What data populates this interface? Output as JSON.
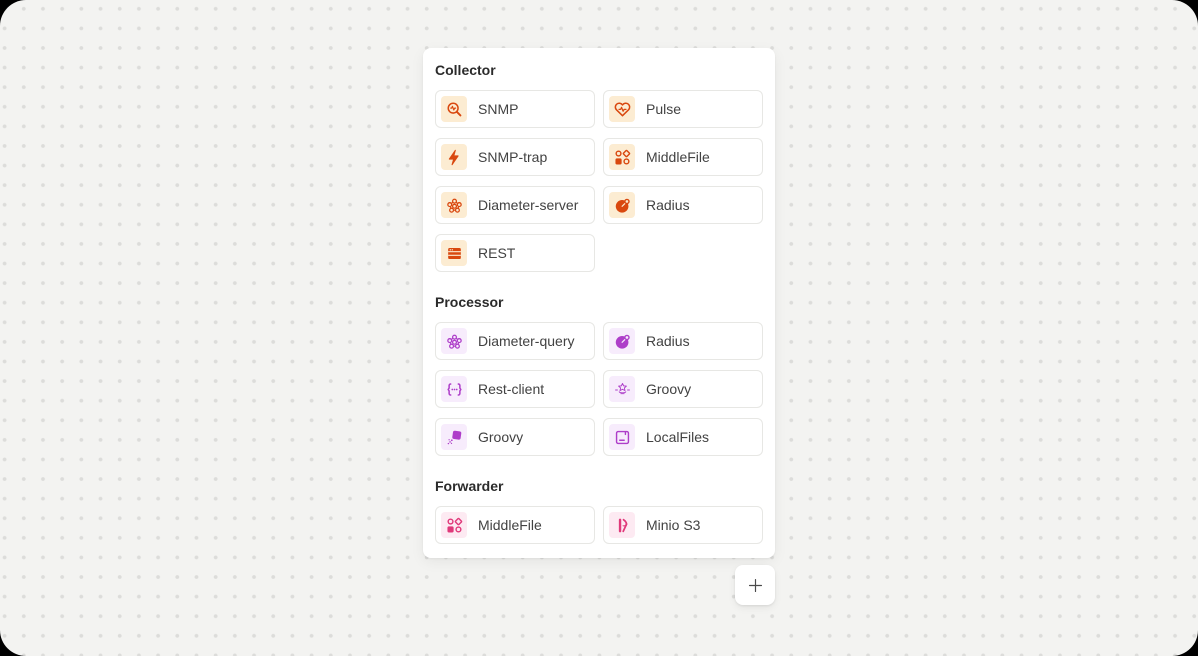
{
  "canvas": {
    "background_color": "#f3f3f1",
    "dot_color": "#dcdcda"
  },
  "palette": {
    "sections": [
      {
        "title": "Collector",
        "family": "collector",
        "accent_color": "#d9480f",
        "tile_color": "#fcecd2",
        "items": [
          {
            "label": "SNMP",
            "icon": "snmp-search-wave-icon"
          },
          {
            "label": "Pulse",
            "icon": "heart-pulse-icon"
          },
          {
            "label": "SNMP-trap",
            "icon": "lightning-bolt-icon"
          },
          {
            "label": "MiddleFile",
            "icon": "shapes-grid-icon"
          },
          {
            "label": "Diameter-server",
            "icon": "node-cluster-icon"
          },
          {
            "label": "Radius",
            "icon": "radius-disc-icon"
          },
          {
            "label": "REST",
            "icon": "server-stack-icon"
          }
        ]
      },
      {
        "title": "Processor",
        "family": "processor",
        "accent_color": "#ae3ec9",
        "tile_color": "#f7ecfc",
        "items": [
          {
            "label": "Diameter-query",
            "icon": "node-cluster-icon"
          },
          {
            "label": "Radius",
            "icon": "radius-disc-icon"
          },
          {
            "label": "Rest-client",
            "icon": "code-braces-dots-icon"
          },
          {
            "label": "Groovy",
            "icon": "groovy-star-logo-icon"
          },
          {
            "label": "Groovy",
            "icon": "spray-stamp-icon"
          },
          {
            "label": "LocalFiles",
            "icon": "floppy-disk-icon"
          }
        ]
      },
      {
        "title": "Forwarder",
        "family": "forwarder",
        "accent_color": "#e0397a",
        "tile_color": "#fdeaf2",
        "items": [
          {
            "label": "MiddleFile",
            "icon": "shapes-grid-icon"
          },
          {
            "label": "Minio S3",
            "icon": "minio-logo-icon"
          }
        ]
      }
    ]
  },
  "add_button": {
    "icon": "plus-icon"
  }
}
